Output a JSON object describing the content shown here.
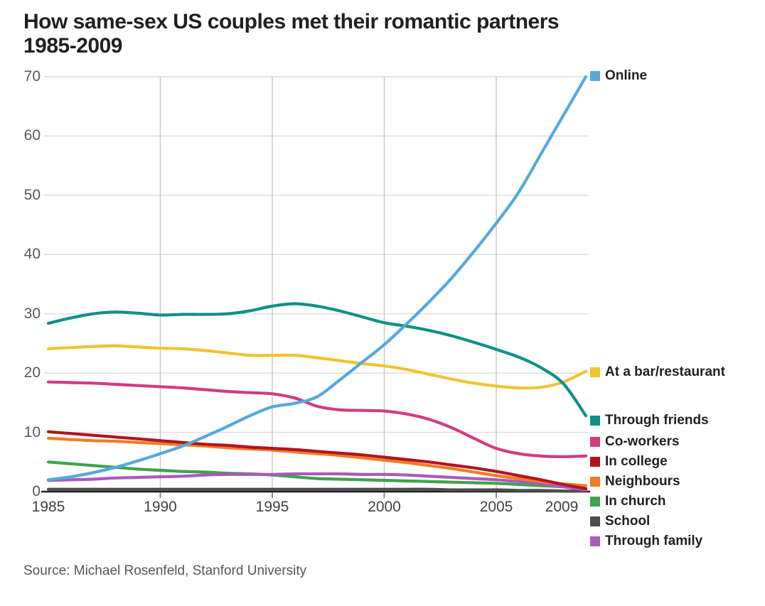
{
  "title": {
    "line1": "How same-sex US couples met their romantic partners",
    "line2": "1985-2009"
  },
  "source": "Source: Michael Rosenfeld, Stanford University",
  "chart_data": {
    "type": "line",
    "title": "How same-sex US couples met their romantic partners 1985-2009",
    "xlabel": "",
    "ylabel": "",
    "xlim": [
      1985,
      2009
    ],
    "ylim": [
      0,
      70
    ],
    "grid": true,
    "legend_position": "right",
    "x_ticks": [
      1985,
      1990,
      1995,
      2000,
      2005,
      2009
    ],
    "y_ticks": [
      0,
      10,
      20,
      30,
      40,
      50,
      60,
      70
    ],
    "x": [
      1985,
      1986,
      1987,
      1988,
      1989,
      1990,
      1991,
      1992,
      1993,
      1994,
      1995,
      1996,
      1997,
      1998,
      1999,
      2000,
      2001,
      2002,
      2003,
      2004,
      2005,
      2006,
      2007,
      2008,
      2009
    ],
    "series": [
      {
        "name": "Online",
        "color": "#54a9e0",
        "values": [
          2.0,
          2.5,
          3.2,
          4.1,
          5.2,
          6.4,
          7.7,
          9.3,
          11.0,
          12.8,
          14.3,
          14.9,
          16.0,
          18.8,
          21.8,
          24.8,
          28.3,
          32.0,
          36.0,
          40.5,
          45.3,
          50.5,
          57.0,
          63.5,
          70.0
        ]
      },
      {
        "name": "At a bar/restaurant",
        "color": "#f0c331",
        "values": [
          24.1,
          24.3,
          24.5,
          24.6,
          24.4,
          24.2,
          24.1,
          23.8,
          23.4,
          23.0,
          23.0,
          23.0,
          22.6,
          22.1,
          21.6,
          21.2,
          20.6,
          19.8,
          19.0,
          18.3,
          17.8,
          17.5,
          17.6,
          18.5,
          20.3
        ]
      },
      {
        "name": "Through friends",
        "color": "#0d9186",
        "values": [
          28.4,
          29.3,
          30.0,
          30.3,
          30.1,
          29.8,
          29.9,
          29.9,
          30.0,
          30.5,
          31.3,
          31.7,
          31.3,
          30.5,
          29.5,
          28.5,
          27.9,
          27.2,
          26.3,
          25.2,
          24.0,
          22.7,
          20.9,
          18.2,
          12.8
        ]
      },
      {
        "name": "Co-workers",
        "color": "#d23c80",
        "values": [
          18.5,
          18.4,
          18.3,
          18.1,
          17.9,
          17.7,
          17.5,
          17.2,
          16.9,
          16.7,
          16.5,
          15.8,
          14.4,
          13.8,
          13.7,
          13.6,
          13.1,
          12.2,
          10.8,
          9.0,
          7.3,
          6.4,
          6.0,
          5.9,
          6.0
        ]
      },
      {
        "name": "In college",
        "color": "#b2131f",
        "values": [
          10.1,
          9.8,
          9.5,
          9.2,
          8.9,
          8.6,
          8.3,
          8.0,
          7.8,
          7.5,
          7.3,
          7.1,
          6.8,
          6.5,
          6.2,
          5.8,
          5.4,
          5.0,
          4.5,
          4.0,
          3.4,
          2.7,
          2.0,
          1.2,
          0.5
        ]
      },
      {
        "name": "Neighbours",
        "color": "#ef7d23",
        "values": [
          9.0,
          8.8,
          8.6,
          8.5,
          8.3,
          8.1,
          7.9,
          7.7,
          7.4,
          7.2,
          7.0,
          6.7,
          6.4,
          6.1,
          5.7,
          5.3,
          4.9,
          4.4,
          3.9,
          3.3,
          2.7,
          2.2,
          1.7,
          1.3,
          1.0
        ]
      },
      {
        "name": "In church",
        "color": "#3ea34c",
        "values": [
          5.0,
          4.7,
          4.4,
          4.1,
          3.8,
          3.6,
          3.4,
          3.3,
          3.1,
          3.0,
          2.8,
          2.5,
          2.2,
          2.1,
          2.0,
          1.9,
          1.8,
          1.7,
          1.6,
          1.5,
          1.4,
          1.2,
          1.0,
          0.8,
          0.5
        ]
      },
      {
        "name": "School",
        "color": "#4d4d4f",
        "values": [
          0.4,
          0.4,
          0.4,
          0.4,
          0.4,
          0.4,
          0.4,
          0.4,
          0.4,
          0.4,
          0.4,
          0.4,
          0.4,
          0.4,
          0.4,
          0.4,
          0.4,
          0.4,
          0.3,
          0.3,
          0.3,
          0.2,
          0.2,
          0.1,
          0.1
        ]
      },
      {
        "name": "Through family",
        "color": "#aa5ab9",
        "values": [
          1.9,
          2.0,
          2.1,
          2.3,
          2.4,
          2.5,
          2.6,
          2.8,
          2.9,
          2.9,
          2.9,
          3.0,
          3.0,
          3.0,
          2.9,
          2.9,
          2.8,
          2.6,
          2.4,
          2.2,
          2.0,
          1.7,
          1.3,
          0.8,
          0.3
        ]
      }
    ]
  }
}
